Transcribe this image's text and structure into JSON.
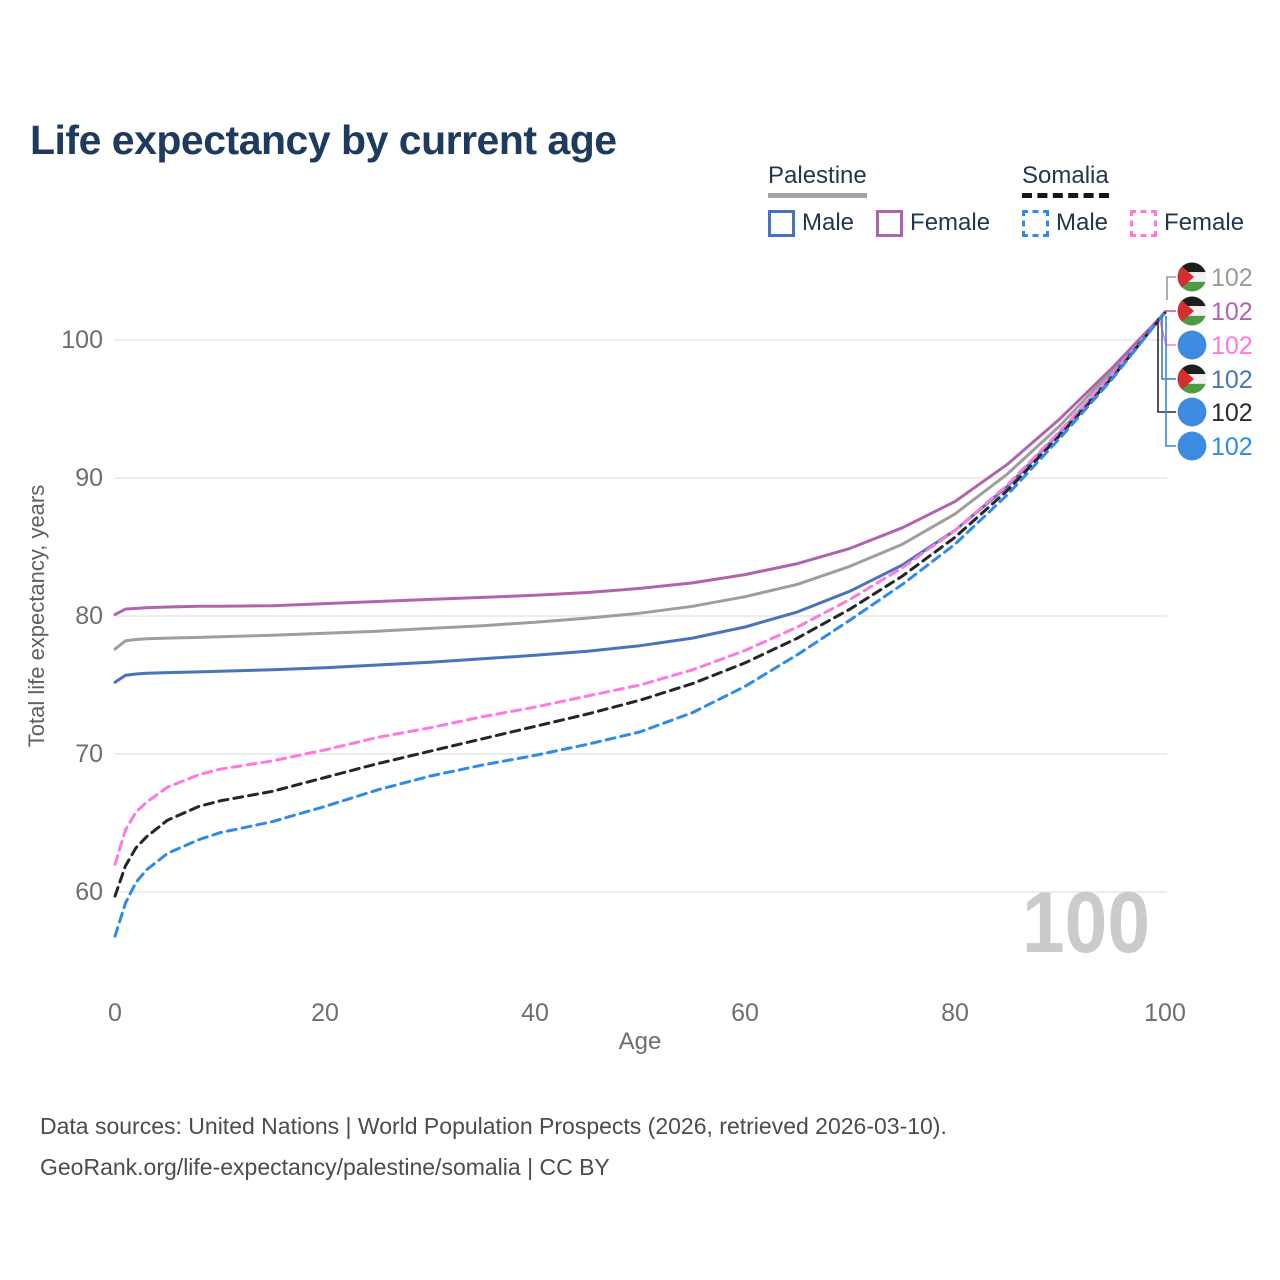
{
  "title": "Life expectancy by current age",
  "legend": {
    "groups": [
      {
        "name": "Palestine",
        "line_style": "solid",
        "line_color": "#a5a5a5",
        "items": [
          {
            "label": "Male",
            "color": "#4a74ba"
          },
          {
            "label": "Female",
            "color": "#b164ae"
          }
        ]
      },
      {
        "name": "Somalia",
        "line_style": "dashed",
        "line_color": "#161616",
        "items": [
          {
            "label": "Male",
            "color": "#2f8be8"
          },
          {
            "label": "Female",
            "color": "#ff79df"
          }
        ]
      }
    ]
  },
  "chart_data": {
    "type": "line",
    "title": "Life expectancy by current age",
    "xlabel": "Age",
    "ylabel": "Total life expectancy, years",
    "x_ticks": [
      0,
      20,
      40,
      60,
      80,
      100
    ],
    "y_ticks": [
      60,
      70,
      80,
      90,
      100
    ],
    "xlim": [
      0,
      100
    ],
    "ylim": [
      56,
      103
    ],
    "grid": "horizontal",
    "legend_position": "top-right",
    "age_counter": "100",
    "x": [
      0,
      1,
      2,
      3,
      5,
      8,
      10,
      15,
      20,
      25,
      30,
      35,
      40,
      45,
      50,
      55,
      60,
      65,
      70,
      75,
      80,
      85,
      90,
      95,
      100
    ],
    "series": [
      {
        "id": "palestine_all",
        "country": "Palestine",
        "group": "All",
        "style": "solid",
        "color": "#9e9e9e",
        "values": [
          77.6,
          78.2,
          78.3,
          78.35,
          78.4,
          78.45,
          78.5,
          78.6,
          78.75,
          78.9,
          79.1,
          79.3,
          79.55,
          79.85,
          80.2,
          80.7,
          81.4,
          82.3,
          83.6,
          85.2,
          87.4,
          90.3,
          93.8,
          97.8,
          102
        ]
      },
      {
        "id": "palestine_female",
        "country": "Palestine",
        "group": "Female",
        "style": "solid",
        "color": "#b164ae",
        "values": [
          80.1,
          80.5,
          80.55,
          80.6,
          80.65,
          80.7,
          80.7,
          80.75,
          80.9,
          81.05,
          81.2,
          81.35,
          81.5,
          81.7,
          82.0,
          82.4,
          83.0,
          83.8,
          84.9,
          86.4,
          88.3,
          91.0,
          94.3,
          98.0,
          102
        ]
      },
      {
        "id": "palestine_male",
        "country": "Palestine",
        "group": "Male",
        "style": "solid",
        "color": "#4a74ba",
        "values": [
          75.2,
          75.7,
          75.8,
          75.85,
          75.9,
          75.95,
          76.0,
          76.1,
          76.25,
          76.45,
          76.65,
          76.9,
          77.15,
          77.45,
          77.85,
          78.4,
          79.2,
          80.3,
          81.8,
          83.7,
          86.2,
          89.4,
          93.3,
          97.5,
          102
        ]
      },
      {
        "id": "somalia_female",
        "country": "Somalia",
        "group": "Female",
        "style": "dashed",
        "color": "#ff79df",
        "values": [
          62.0,
          64.5,
          65.8,
          66.5,
          67.6,
          68.5,
          68.9,
          69.5,
          70.3,
          71.2,
          71.9,
          72.7,
          73.4,
          74.2,
          75.0,
          76.1,
          77.5,
          79.2,
          81.2,
          83.5,
          86.2,
          89.5,
          93.4,
          97.5,
          102
        ]
      },
      {
        "id": "somalia_all",
        "country": "Somalia",
        "group": "All",
        "style": "dashed",
        "color": "#262626",
        "values": [
          59.7,
          61.9,
          63.2,
          64.0,
          65.2,
          66.2,
          66.6,
          67.3,
          68.3,
          69.3,
          70.2,
          71.1,
          72.0,
          72.9,
          73.9,
          75.1,
          76.6,
          78.4,
          80.5,
          82.9,
          85.7,
          89.1,
          93.1,
          97.3,
          102
        ]
      },
      {
        "id": "somalia_male",
        "country": "Somalia",
        "group": "Male",
        "style": "dashed",
        "color": "#2f8be8",
        "values": [
          56.8,
          59.2,
          60.7,
          61.6,
          62.8,
          63.8,
          64.3,
          65.1,
          66.2,
          67.4,
          68.4,
          69.2,
          69.9,
          70.7,
          71.6,
          73.0,
          74.9,
          77.2,
          79.7,
          82.3,
          85.2,
          88.8,
          92.9,
          97.2,
          102
        ]
      }
    ],
    "end_labels": [
      {
        "series": "palestine_all",
        "flag": "palestine",
        "value": "102",
        "color": "#9a9a9a"
      },
      {
        "series": "palestine_female",
        "flag": "palestine",
        "value": "102",
        "color": "#b164ae"
      },
      {
        "series": "somalia_female",
        "flag": "somalia",
        "value": "102",
        "color": "#ff79df"
      },
      {
        "series": "palestine_male",
        "flag": "palestine",
        "value": "102",
        "color": "#4a74ba"
      },
      {
        "series": "somalia_all",
        "flag": "somalia",
        "value": "102",
        "color": "#2b2b2b"
      },
      {
        "series": "somalia_male",
        "flag": "somalia",
        "value": "102",
        "color": "#2f8be8"
      }
    ],
    "flag_colors": {
      "palestine": {
        "black": "#1e1e1e",
        "white": "#f2f2f2",
        "green": "#4f9a47",
        "red": "#d32f2f"
      },
      "somalia": {
        "blue": "#3c8be0",
        "star": "#ffffff"
      }
    }
  },
  "footer": {
    "line1": "Data sources: United Nations | World Population Prospects (2026, retrieved 2026-03-10).",
    "line2": "GeoRank.org/life-expectancy/palestine/somalia | CC BY"
  }
}
